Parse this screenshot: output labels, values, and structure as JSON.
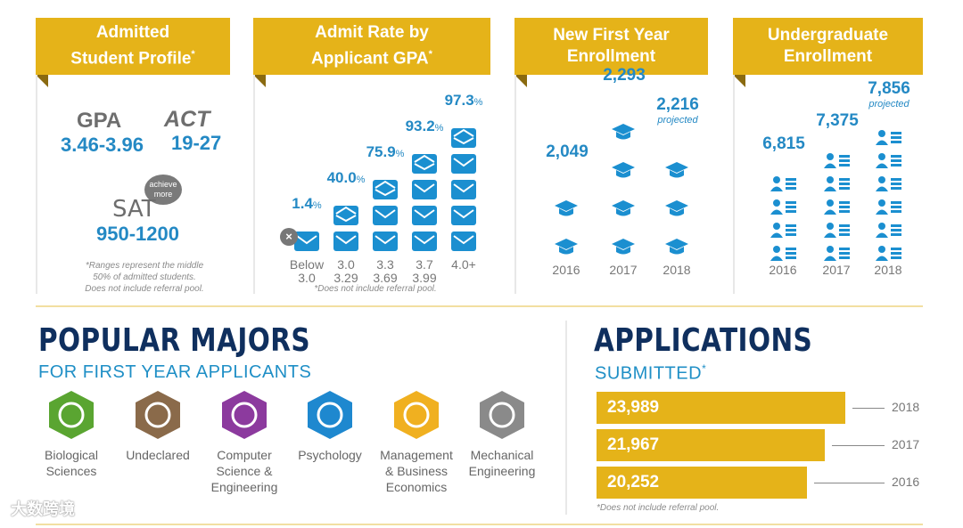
{
  "colors": {
    "accent": "#e5b319",
    "blue": "#1b8fd0",
    "navy": "#0f2f5e"
  },
  "profile": {
    "title_line1": "Admitted",
    "title_line2": "Student Profile",
    "star": "*",
    "gpa_label": "GPA",
    "gpa_range": "3.46-3.96",
    "act_label": "ACT",
    "act_range": "19-27",
    "sat_badge_1": "achieve",
    "sat_badge_2": "more",
    "sat_label": "SAT",
    "sat_range": "950-1200",
    "note_line1": "*Ranges represent the middle",
    "note_line2": "50% of admitted students.",
    "note_line3": "Does not include referral pool."
  },
  "chart_data": [
    {
      "type": "bar",
      "title": "Admit Rate by Applicant GPA*",
      "title_line1": "Admit Rate by",
      "title_line2": "Applicant GPA",
      "star": "*",
      "categories": [
        "Below 3.0",
        "3.0 3.29",
        "3.3 3.69",
        "3.7 3.99",
        "4.0+"
      ],
      "tick_lines": [
        [
          "Below",
          "3.0"
        ],
        [
          "3.0",
          "3.29"
        ],
        [
          "3.3",
          "3.69"
        ],
        [
          "3.7",
          "3.99"
        ],
        [
          "4.0+",
          ""
        ]
      ],
      "values": [
        1.4,
        40.0,
        75.9,
        93.2,
        97.3
      ],
      "value_labels": [
        "1.4",
        "40.0",
        "75.9",
        "93.2",
        "97.3"
      ],
      "unit": "%",
      "icon_counts": [
        1,
        2,
        3,
        4,
        5
      ],
      "note": "*Does not include referral pool."
    },
    {
      "type": "bar",
      "title": "New First Year Enrollment",
      "title_line1": "New First Year",
      "title_line2": "Enrollment",
      "categories": [
        "2016",
        "2017",
        "2018"
      ],
      "values": [
        2049,
        2293,
        2216
      ],
      "value_labels": [
        "2,049",
        "2,293",
        "2,216"
      ],
      "annotations": [
        "",
        "",
        "projected"
      ],
      "icon_counts": [
        2,
        4,
        3
      ]
    },
    {
      "type": "bar",
      "title": "Undergraduate Enrollment",
      "title_line1": "Undergraduate",
      "title_line2": "Enrollment",
      "categories": [
        "2016",
        "2017",
        "2018"
      ],
      "values": [
        6815,
        7375,
        7856
      ],
      "value_labels": [
        "6,815",
        "7,375",
        "7,856"
      ],
      "annotations": [
        "",
        "",
        "projected"
      ],
      "icon_counts": [
        4,
        5,
        6
      ]
    },
    {
      "type": "bar",
      "orientation": "horizontal",
      "title": "APPLICATIONS SUBMITTED*",
      "title_main": "APPLICATIONS",
      "title_sub": "SUBMITTED",
      "star": "*",
      "categories": [
        "2018",
        "2017",
        "2016"
      ],
      "values": [
        23989,
        21967,
        20252
      ],
      "value_labels": [
        "23,989",
        "21,967",
        "20,252"
      ],
      "note": "*Does not include referral pool."
    }
  ],
  "majors": {
    "title": "POPULAR MAJORS",
    "subtitle": "FOR FIRST YEAR APPLICANTS",
    "items": [
      {
        "line1": "Biological",
        "line2": "Sciences",
        "line3": "",
        "color": "#5aa531",
        "icon": "leaf-icon"
      },
      {
        "line1": "Undeclared",
        "line2": "",
        "line3": "",
        "color": "#8a6a4a",
        "icon": "signpost-icon"
      },
      {
        "line1": "Computer",
        "line2": "Science &",
        "line3": "Engineering",
        "color": "#8c3a9e",
        "icon": "monitor-icon"
      },
      {
        "line1": "Psychology",
        "line2": "",
        "line3": "",
        "color": "#1e88cf",
        "icon": "head-icon"
      },
      {
        "line1": "Management",
        "line2": "& Business",
        "line3": "Economics",
        "color": "#f0b020",
        "icon": "briefcase-icon"
      },
      {
        "line1": "Mechanical",
        "line2": "Engineering",
        "line3": "",
        "color": "#8a8a8a",
        "icon": "gears-icon"
      }
    ]
  },
  "watermark": "大数跨境"
}
